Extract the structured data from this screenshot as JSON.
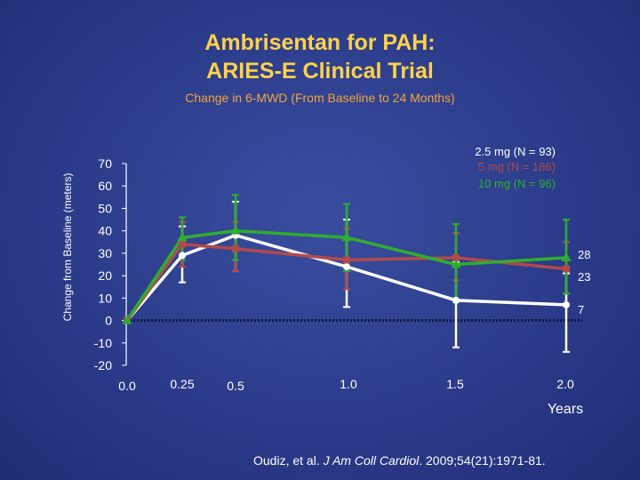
{
  "title_line1": "Ambrisentan for PAH:",
  "title_line2": "ARIES-E Clinical Trial",
  "citation": {
    "authors": "Oudiz, et al.",
    "journal": "J Am Coll Cardiol",
    "details": ". 2009;54(21):1971-81."
  },
  "colors": {
    "background": "#2d3e8e",
    "title": "#ffd24a",
    "subtitle": "#f0a53a",
    "series_2_5mg": "#ffffff",
    "series_5mg": "#b04a4a",
    "series_10mg": "#2fae2f"
  },
  "chart_data": {
    "type": "line",
    "title": "Change in 6-MWD (From Baseline to 24 Months)",
    "xlabel": "Years",
    "ylabel": "Change from Baseline (meters)",
    "ylim": [
      -20,
      70
    ],
    "yticks": [
      "70",
      "60",
      "50",
      "40",
      "30",
      "20",
      "10",
      "0",
      "-10",
      "-20"
    ],
    "ytick_values": [
      70,
      60,
      50,
      40,
      30,
      20,
      10,
      0,
      -10,
      -20
    ],
    "xticks": [
      "0.0",
      "0.25",
      "0.5",
      "1.0",
      "1.5",
      "2.0"
    ],
    "x": [
      0,
      0.25,
      0.5,
      1.0,
      1.5,
      2.0
    ],
    "series": [
      {
        "name": "2.5 mg (N = 93)",
        "color": "#ffffff",
        "marker": "circle",
        "values": [
          0,
          29,
          38,
          24,
          9,
          7
        ],
        "err_low": [
          0,
          17,
          22,
          6,
          -12,
          -14
        ],
        "err_high": [
          0,
          42,
          53,
          45,
          26,
          21
        ],
        "end_label": "7"
      },
      {
        "name": "5 mg (N = 186)",
        "color": "#b04a4a",
        "marker": "square",
        "values": [
          0,
          34,
          32,
          27,
          28,
          23
        ],
        "err_low": [
          0,
          24,
          22,
          14,
          18,
          12
        ],
        "err_high": [
          0,
          44,
          44,
          41,
          39,
          35
        ],
        "end_label": "23"
      },
      {
        "name": "10 mg (N = 96)",
        "color": "#2fae2f",
        "marker": "triangle",
        "values": [
          0,
          37,
          40,
          37,
          25,
          28
        ],
        "err_low": [
          0,
          27,
          27,
          22,
          8,
          12
        ],
        "err_high": [
          0,
          46,
          56,
          52,
          43,
          45
        ],
        "end_label": "28"
      }
    ],
    "legend_position": "top-right",
    "baseline_line": "dotted"
  }
}
